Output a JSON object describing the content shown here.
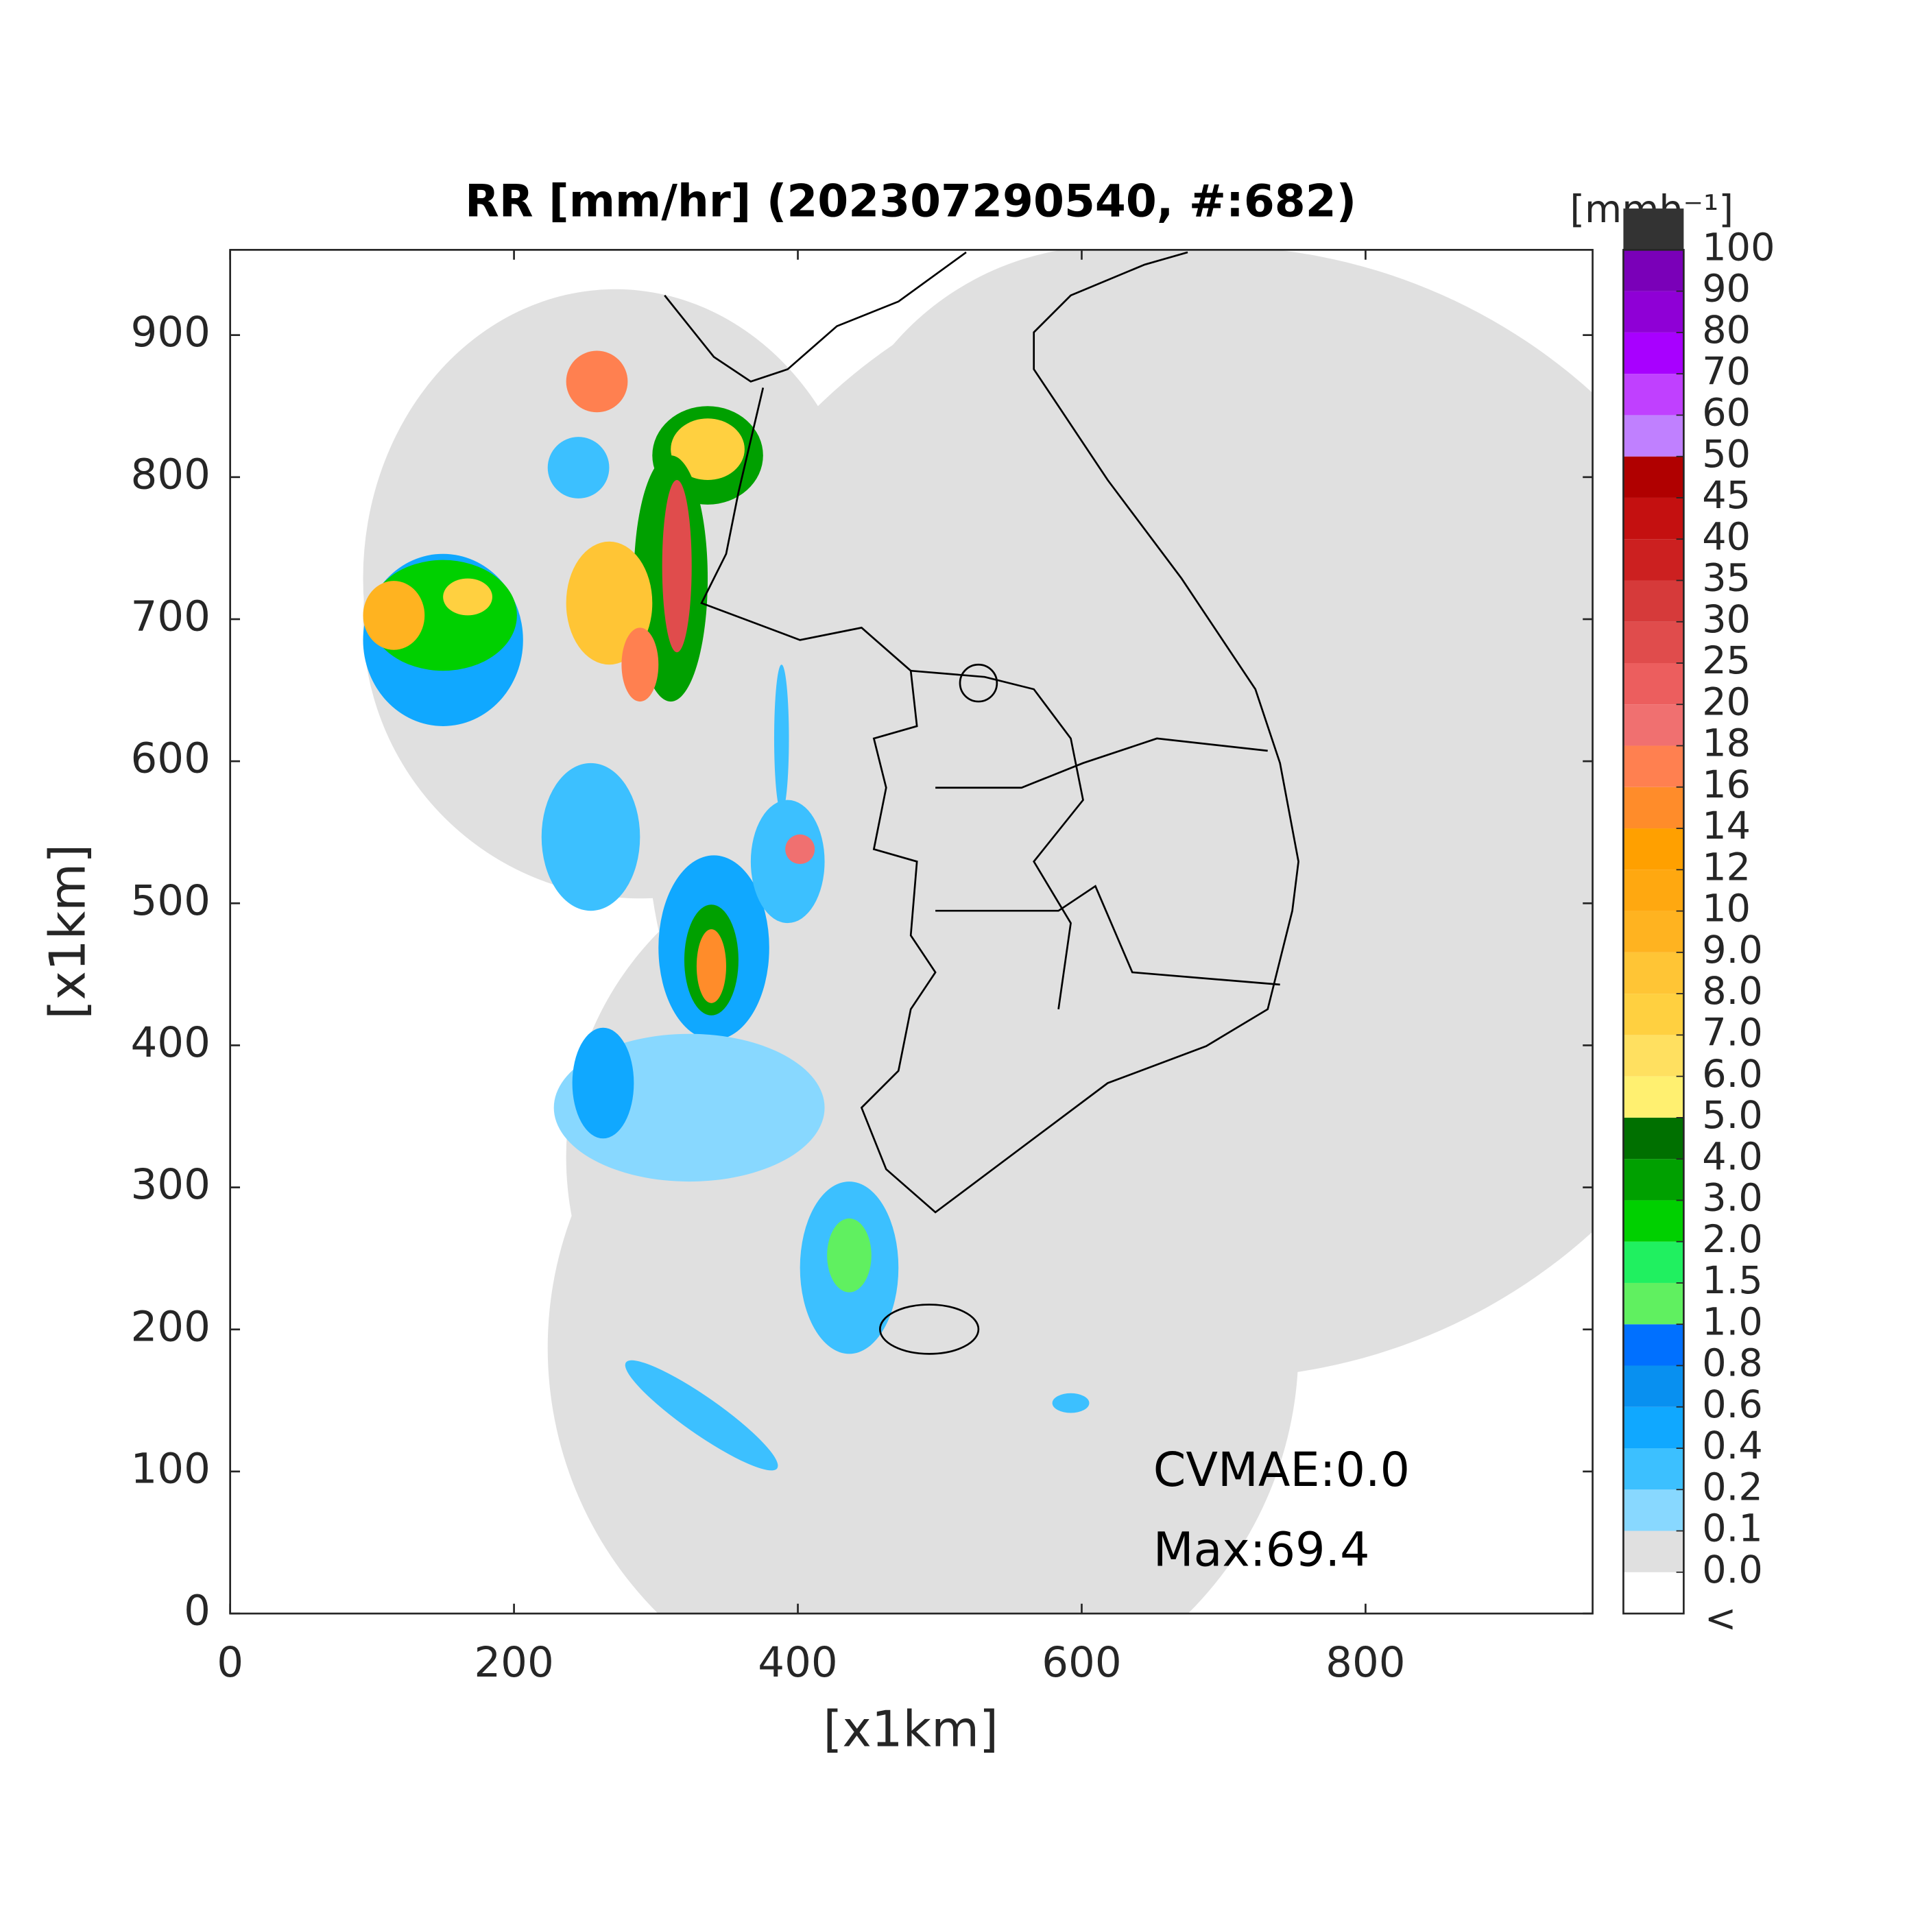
{
  "chart_data": {
    "type": "radar-map",
    "title": "RR [mm/hr] (202307290540, #:682)",
    "xlabel": "[x1km]",
    "ylabel": "[x1km]",
    "xlim": [
      0,
      960
    ],
    "ylim": [
      0,
      960
    ],
    "xticks": [
      0,
      200,
      400,
      600,
      800
    ],
    "yticks": [
      0,
      100,
      200,
      300,
      400,
      500,
      600,
      700,
      800,
      900
    ],
    "annotations": [
      "CVMAE:0.0",
      "Max:69.4"
    ],
    "colorbar": {
      "label": "[mmh⁻¹]",
      "under_label": "<",
      "ticks": [
        {
          "value": 0,
          "label": "0.0"
        },
        0.1,
        0.2,
        0.4,
        0.6,
        0.8,
        {
          "value": 1,
          "label": "1.0"
        },
        1.5,
        {
          "value": 2,
          "label": "2.0"
        },
        {
          "value": 3,
          "label": "3.0"
        },
        {
          "value": 4,
          "label": "4.0"
        },
        {
          "value": 5,
          "label": "5.0"
        },
        {
          "value": 6,
          "label": "6.0"
        },
        {
          "value": 7,
          "label": "7.0"
        },
        {
          "value": 8,
          "label": "8.0"
        },
        {
          "value": 9,
          "label": "9.0"
        },
        10,
        12,
        14,
        16,
        18,
        20,
        25,
        30,
        35,
        40,
        45,
        50,
        60,
        70,
        80,
        90,
        100
      ],
      "colors": [
        "#ffffff",
        "#e0e0e0",
        "#88d8ff",
        "#3cc0ff",
        "#10a8ff",
        "#0890f0",
        "#0070ff",
        "#60f060",
        "#20f060",
        "#00d000",
        "#00a000",
        "#007000",
        "#fff070",
        "#ffe060",
        "#ffd040",
        "#ffc535",
        "#ffb320",
        "#ffa810",
        "#ffa000",
        "#ff8c2a",
        "#ff8050",
        "#f07070",
        "#ec5e5e",
        "#e04c4c",
        "#d63a3a",
        "#cc2020",
        "#c41010",
        "#b00000",
        "#c080ff",
        "#c040ff",
        "#a800ff",
        "#8f00d6",
        "#7a00b8",
        "#333333"
      ]
    }
  }
}
